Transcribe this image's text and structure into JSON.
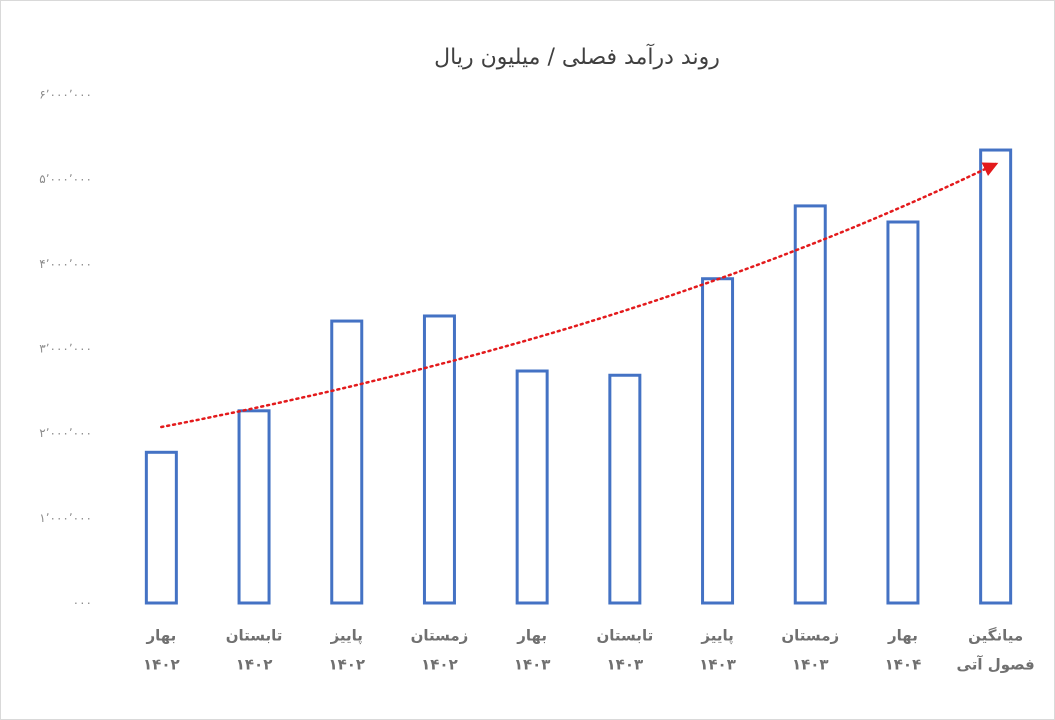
{
  "chart_data": {
    "type": "bar",
    "title": "روند درآمد فصلی / میلیون ریال",
    "categories": [
      [
        "بهار",
        "۱۴۰۲"
      ],
      [
        "تابستان",
        "۱۴۰۲"
      ],
      [
        "پاییز",
        "۱۴۰۲"
      ],
      [
        "زمستان",
        "۱۴۰۲"
      ],
      [
        "بهار",
        "۱۴۰۳"
      ],
      [
        "تابستان",
        "۱۴۰۳"
      ],
      [
        "پاییز",
        "۱۴۰۳"
      ],
      [
        "زمستان",
        "۱۴۰۳"
      ],
      [
        "بهار",
        "۱۴۰۴"
      ],
      [
        "میانگین",
        "فصول آتی"
      ]
    ],
    "values": [
      1780000,
      2270000,
      3330000,
      3390000,
      2740000,
      2690000,
      3830000,
      4690000,
      4500000,
      5350000
    ],
    "color": "#4472c4",
    "ylim": [
      0,
      6000000
    ],
    "yticks": [
      {
        "value": 0,
        "label": "۰۰۰"
      },
      {
        "value": 1000000,
        "label": "۱٬۰۰۰٬۰۰۰"
      },
      {
        "value": 2000000,
        "label": "۲٬۰۰۰٬۰۰۰"
      },
      {
        "value": 3000000,
        "label": "۳٬۰۰۰٬۰۰۰"
      },
      {
        "value": 4000000,
        "label": "۴٬۰۰۰٬۰۰۰"
      },
      {
        "value": 5000000,
        "label": "۵٬۰۰۰٬۰۰۰"
      },
      {
        "value": 6000000,
        "label": "۶٬۰۰۰٬۰۰۰"
      }
    ],
    "grid": false,
    "trendline": {
      "type": "exponential",
      "color": "#e31a1c"
    }
  }
}
